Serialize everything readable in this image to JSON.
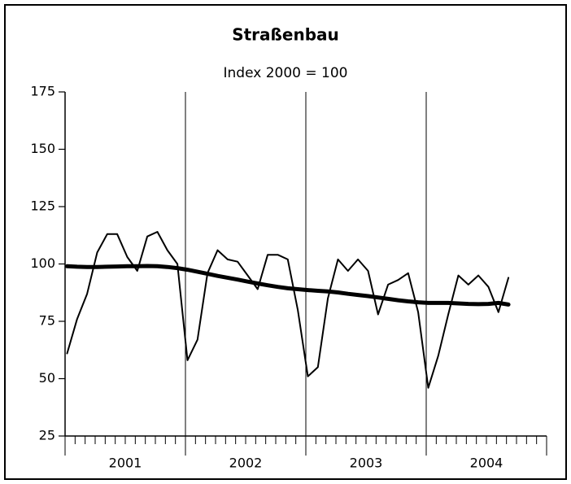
{
  "chart_data": {
    "type": "line",
    "title": "Straßenbau",
    "subtitle": "Index 2000 = 100",
    "categories": [
      "2001",
      null,
      null,
      null,
      null,
      null,
      null,
      null,
      null,
      null,
      null,
      null,
      "2002",
      null,
      null,
      null,
      null,
      null,
      null,
      null,
      null,
      null,
      null,
      null,
      "2003",
      null,
      null,
      null,
      null,
      null,
      null,
      null,
      null,
      null,
      null,
      null,
      "2004",
      null,
      null,
      null,
      null,
      null,
      null,
      null,
      null,
      null,
      null,
      null
    ],
    "series": [
      {
        "color": "#000000",
        "width": 2,
        "values": [
          61,
          76,
          87,
          105,
          113,
          113,
          103,
          97,
          112,
          114,
          106,
          100,
          58,
          67,
          96,
          106,
          102,
          101,
          95,
          89,
          104,
          104,
          102,
          80,
          51,
          55,
          85,
          102,
          97,
          102,
          97,
          78,
          91,
          93,
          96,
          79,
          46,
          60,
          78,
          95,
          91,
          95,
          90,
          79,
          94,
          null,
          null,
          null
        ]
      },
      {
        "color": "#000000",
        "width": 5,
        "values": [
          99,
          98.8,
          98.7,
          98.7,
          98.8,
          98.9,
          99,
          99,
          99.1,
          99,
          98.7,
          98.2,
          97.5,
          96.6,
          95.7,
          94.8,
          94,
          93.2,
          92.3,
          91.5,
          90.7,
          90,
          89.4,
          89,
          88.6,
          88.3,
          88,
          87.6,
          87,
          86.5,
          86,
          85.4,
          84.8,
          84.2,
          83.7,
          83.3,
          83,
          83,
          83,
          82.8,
          82.6,
          82.5,
          82.6,
          83,
          82.3,
          null,
          null,
          null
        ]
      }
    ],
    "ylim": [
      25,
      175
    ],
    "yticks": [
      25,
      50,
      75,
      100,
      125,
      150,
      175
    ],
    "grid": false
  }
}
